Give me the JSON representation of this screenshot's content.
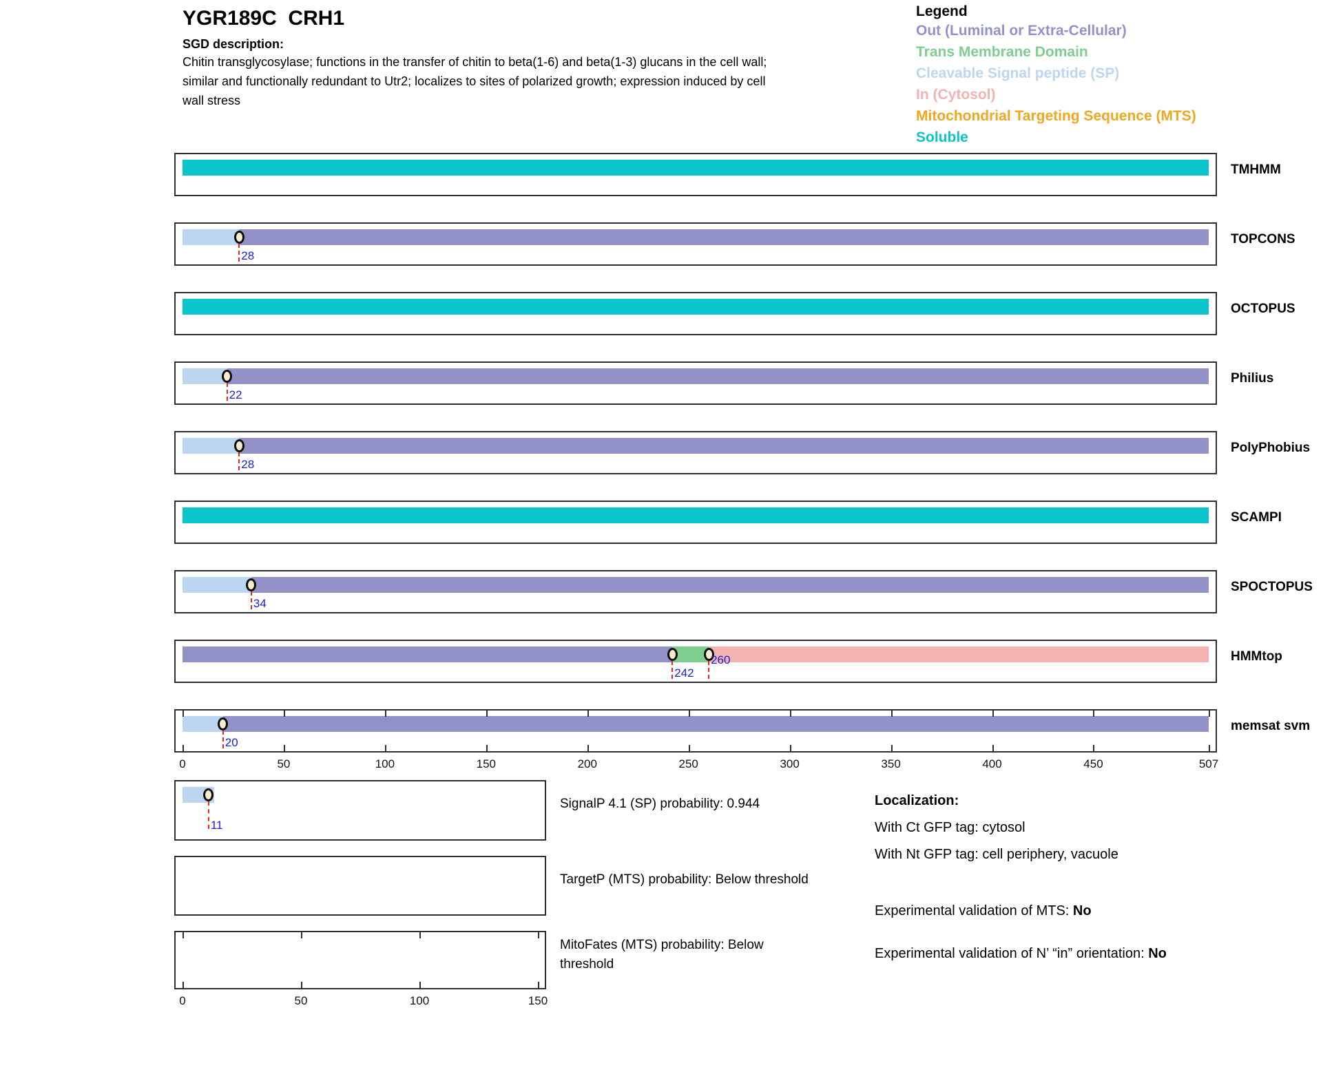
{
  "header": {
    "title": "YGR189C  CRH1",
    "sgd_label": "SGD description:",
    "description_lines": [
      "Chitin transglycosylase; functions in the transfer of chitin to beta(1-6) and beta(1-3) glucans in the cell wall;",
      "similar and functionally redundant to Utr2; localizes to sites of polarized growth; expression induced by cell",
      "wall stress"
    ]
  },
  "colors": {
    "out": "#9292C9",
    "tm": "#7FCE8F",
    "sp": "#BCD6F2",
    "in": "#F2B3B1",
    "mts": "#EFA71E",
    "soluble": "#0AC5C9",
    "marker_fill": "#FAEDCF",
    "marker_line": "#E42525",
    "marker_label": "#1C1CD8"
  },
  "legend": {
    "title": "Legend",
    "items": [
      {
        "label": "Out (Luminal or Extra-Cellular)",
        "key": "out"
      },
      {
        "label": "Trans Membrane Domain",
        "key": "tm"
      },
      {
        "label": "Cleavable Signal peptide (SP)",
        "key": "sp"
      },
      {
        "label": "In (Cytosol)",
        "key": "in"
      },
      {
        "label": "Mitochondrial Targeting Sequence (MTS)",
        "key": "mts"
      },
      {
        "label": "Soluble",
        "key": "soluble"
      }
    ]
  },
  "chart_data": {
    "type": "bar",
    "orientation": "horizontal",
    "x_axis": {
      "min": 0,
      "max": 507,
      "ticks": [
        0,
        50,
        100,
        150,
        200,
        250,
        300,
        350,
        400,
        450,
        507
      ]
    },
    "tracks": [
      {
        "name": "TMHMM",
        "segments": [
          {
            "type": "soluble",
            "start": 0,
            "end": 507
          }
        ],
        "markers": [],
        "ticks": false,
        "axis": false
      },
      {
        "name": "TOPCONS",
        "segments": [
          {
            "type": "sp",
            "start": 0,
            "end": 28
          },
          {
            "type": "out",
            "start": 28,
            "end": 507
          }
        ],
        "markers": [
          {
            "pos": 28,
            "label": "28"
          }
        ],
        "ticks": false,
        "axis": false
      },
      {
        "name": "OCTOPUS",
        "segments": [
          {
            "type": "soluble",
            "start": 0,
            "end": 507
          }
        ],
        "markers": [],
        "ticks": false,
        "axis": false
      },
      {
        "name": "Philius",
        "segments": [
          {
            "type": "sp",
            "start": 0,
            "end": 22
          },
          {
            "type": "out",
            "start": 22,
            "end": 507
          }
        ],
        "markers": [
          {
            "pos": 22,
            "label": "22"
          }
        ],
        "ticks": false,
        "axis": false
      },
      {
        "name": "PolyPhobius",
        "segments": [
          {
            "type": "sp",
            "start": 0,
            "end": 28
          },
          {
            "type": "out",
            "start": 28,
            "end": 507
          }
        ],
        "markers": [
          {
            "pos": 28,
            "label": "28"
          }
        ],
        "ticks": false,
        "axis": false
      },
      {
        "name": "SCAMPI",
        "segments": [
          {
            "type": "soluble",
            "start": 0,
            "end": 507
          }
        ],
        "markers": [],
        "ticks": false,
        "axis": false
      },
      {
        "name": "SPOCTOPUS",
        "segments": [
          {
            "type": "sp",
            "start": 0,
            "end": 34
          },
          {
            "type": "out",
            "start": 34,
            "end": 507
          }
        ],
        "markers": [
          {
            "pos": 34,
            "label": "34"
          }
        ],
        "ticks": false,
        "axis": false
      },
      {
        "name": "HMMtop",
        "segments": [
          {
            "type": "out",
            "start": 0,
            "end": 242
          },
          {
            "type": "tm",
            "start": 242,
            "end": 260
          },
          {
            "type": "in",
            "start": 260,
            "end": 507
          }
        ],
        "markers": [
          {
            "pos": 242,
            "label": "242"
          },
          {
            "pos": 260,
            "label": "260",
            "raise": true
          }
        ],
        "ticks": false,
        "axis": false
      },
      {
        "name": "memsat svm",
        "segments": [
          {
            "type": "sp",
            "start": 0,
            "end": 20
          },
          {
            "type": "out",
            "start": 20,
            "end": 507
          }
        ],
        "markers": [
          {
            "pos": 20,
            "label": "20"
          }
        ],
        "ticks": true,
        "axis": true
      }
    ],
    "probability_plots": {
      "axis": {
        "min": 0,
        "max": 150,
        "ticks": [
          0,
          50,
          100,
          150
        ]
      },
      "plots": [
        {
          "name": "SignalP",
          "caption_lines": [
            "SignalP 4.1 (SP) probability: 0.944"
          ],
          "segments": [
            {
              "type": "sp",
              "start": 0,
              "end": 13.5
            }
          ],
          "markers": [
            {
              "pos": 11,
              "label": "11"
            }
          ],
          "ticks": false,
          "axis": false
        },
        {
          "name": "TargetP",
          "caption_lines": [
            "TargetP (MTS) probability: Below threshold"
          ],
          "segments": [],
          "markers": [],
          "ticks": false,
          "axis": false
        },
        {
          "name": "MitoFates",
          "caption_lines": [
            "MitoFates (MTS) probability: Below",
            "threshold"
          ],
          "segments": [],
          "markers": [],
          "ticks": true,
          "axis": true
        }
      ]
    }
  },
  "info": {
    "localization_title": "Localization:",
    "ct_line": "With Ct GFP tag: cytosol",
    "nt_line": "With Nt GFP tag: cell periphery, vacuole",
    "mts_label": "Experimental validation of MTS: ",
    "mts_value": "No",
    "orientation_label": "Experimental validation of N’ “in” orientation: ",
    "orientation_value": "No"
  }
}
